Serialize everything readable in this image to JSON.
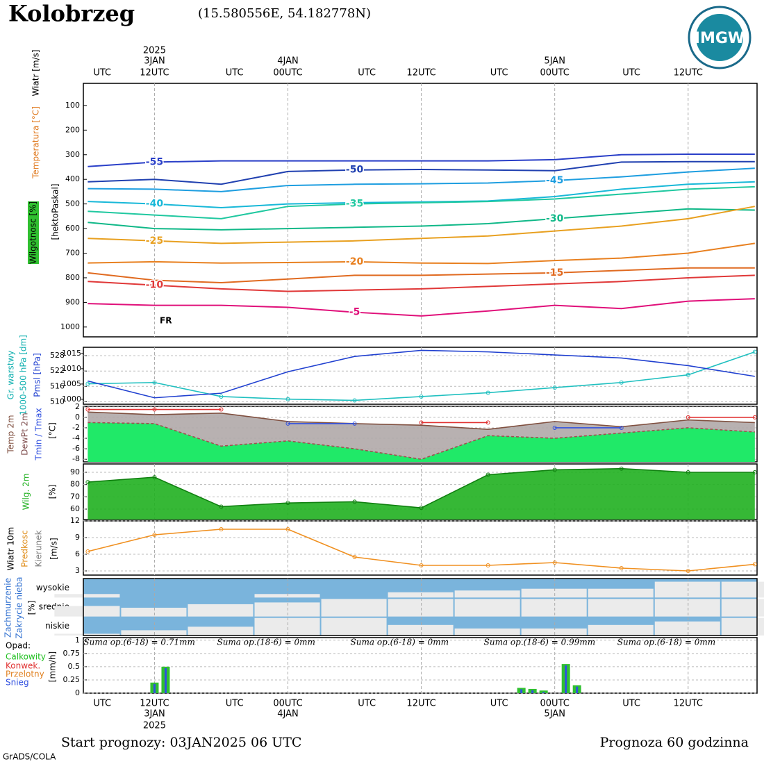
{
  "header": {
    "title": "Kolobrzeg",
    "coords": "(15.580556E, 54.182778N)",
    "logo": "IMGW"
  },
  "time_axis": {
    "xlim": [
      -0.4,
      60.2
    ],
    "ticks": [
      {
        "value": 1.3,
        "label": "UTC"
      },
      {
        "value": 6,
        "label": "12UTC"
      },
      {
        "value": 13.2,
        "label": "UTC"
      },
      {
        "value": 18,
        "label": "00UTC"
      },
      {
        "value": 25.1,
        "label": "UTC"
      },
      {
        "value": 30,
        "label": "12UTC"
      },
      {
        "value": 37,
        "label": "UTC"
      },
      {
        "value": 42,
        "label": "00UTC"
      },
      {
        "value": 48.9,
        "label": "UTC"
      },
      {
        "value": 54,
        "label": "12UTC"
      }
    ],
    "dates": [
      {
        "value": 6,
        "label": "3JAN"
      },
      {
        "value": 18,
        "label": "4JAN"
      },
      {
        "value": 42,
        "label": "5JAN"
      }
    ],
    "year": {
      "value": 6,
      "label": "2025"
    }
  },
  "chart_data": [
    {
      "type": "line",
      "labels": [
        "Wiatr [m/s]",
        "Temperatura [°C]",
        "Wilgotnosc [%]",
        "[hektoPaskal]"
      ],
      "annotations": [
        "FR"
      ],
      "ylim": [
        1040,
        10
      ],
      "yticks": [
        100,
        200,
        300,
        400,
        500,
        600,
        700,
        800,
        900,
        1000
      ],
      "x": [
        0,
        6,
        12,
        18,
        24,
        30,
        36,
        42,
        48,
        54,
        60
      ],
      "series": [
        {
          "name": "-55",
          "color": "#2a3fc8",
          "values": [
            348,
            330,
            325,
            325,
            325,
            325,
            325,
            320,
            300,
            298,
            298
          ]
        },
        {
          "name": "-50",
          "color": "#2040b0",
          "values": [
            410,
            400,
            420,
            368,
            362,
            360,
            362,
            365,
            330,
            328,
            328
          ]
        },
        {
          "name": "-45",
          "color": "#1e9ee0",
          "values": [
            438,
            440,
            450,
            425,
            420,
            418,
            415,
            405,
            390,
            370,
            355
          ]
        },
        {
          "name": "-40",
          "color": "#18b8d8",
          "values": [
            490,
            500,
            515,
            500,
            495,
            492,
            488,
            470,
            440,
            420,
            410
          ]
        },
        {
          "name": "-35",
          "color": "#20c8a0",
          "values": [
            530,
            545,
            560,
            510,
            500,
            495,
            490,
            480,
            460,
            440,
            430
          ]
        },
        {
          "name": "-30",
          "color": "#10b888",
          "values": [
            575,
            600,
            605,
            600,
            595,
            590,
            580,
            560,
            540,
            520,
            525
          ]
        },
        {
          "name": "-25",
          "color": "#e8a020",
          "values": [
            640,
            650,
            660,
            655,
            650,
            640,
            630,
            610,
            590,
            560,
            510
          ]
        },
        {
          "name": "-20",
          "color": "#e88020",
          "values": [
            740,
            735,
            740,
            738,
            735,
            740,
            742,
            730,
            720,
            700,
            660
          ]
        },
        {
          "name": "-15",
          "color": "#e06a20",
          "values": [
            780,
            810,
            820,
            805,
            790,
            790,
            785,
            780,
            770,
            760,
            760
          ]
        },
        {
          "name": "-10",
          "color": "#e03838",
          "values": [
            815,
            830,
            845,
            855,
            850,
            845,
            835,
            825,
            815,
            800,
            790
          ]
        },
        {
          "name": "-5",
          "color": "#e0107a",
          "values": [
            905,
            912,
            912,
            920,
            940,
            955,
            935,
            912,
            925,
            895,
            885
          ]
        }
      ]
    },
    {
      "type": "line",
      "labels": [
        "Gr. warstwy",
        "1000-500 hPa [dm]",
        "Pmsl [hPa]"
      ],
      "ylim": [
        509,
        531.3
      ],
      "yticks": [
        510,
        516,
        522,
        528
      ],
      "y2lim": [
        998.4,
        1017
      ],
      "y2ticks": [
        1000,
        1005,
        1010,
        1015
      ],
      "x": [
        0,
        6,
        12,
        18,
        24,
        30,
        36,
        42,
        48,
        54,
        60
      ],
      "series": [
        {
          "name": "1000-500 hPa",
          "color": "#20c0c0",
          "markers": true,
          "values": [
            517,
            517.5,
            512,
            511,
            510.5,
            512,
            513.5,
            515.5,
            517.5,
            520.5,
            529.5
          ]
        },
        {
          "name": "Pmsl",
          "color": "#2040d0",
          "axis": "y2",
          "values": [
            1006,
            1000.5,
            1002,
            1009,
            1014,
            1016,
            1015.5,
            1014.5,
            1013.5,
            1011,
            1007.5
          ]
        }
      ]
    },
    {
      "type": "line",
      "labels": [
        "Temp 2m",
        "DewPt 2m",
        "Tmin / Tmax",
        "[°C]"
      ],
      "ylim": [
        -8.5,
        2.1
      ],
      "yticks": [
        2,
        0,
        -2,
        -4,
        -6,
        -8
      ],
      "x": [
        0,
        6,
        12,
        18,
        24,
        30,
        36,
        42,
        48,
        54,
        60
      ],
      "series": [
        {
          "name": "Temp 2m",
          "color": "#805040",
          "fill": "#b0a8a8",
          "values": [
            1,
            0.5,
            0.8,
            -0.8,
            -1.2,
            -1.5,
            -2.3,
            -0.8,
            -1.8,
            -0.5,
            -1
          ]
        },
        {
          "name": "DewPt 2m",
          "color": "#a05050",
          "dashed": true,
          "fill": "#10f060",
          "values": [
            -1,
            -1.2,
            -5.5,
            -4.5,
            -6,
            -8,
            -3.5,
            -4,
            -3,
            -2,
            -2.8
          ]
        },
        {
          "name": "Tmax",
          "color": "#e03030",
          "markers": true,
          "values": [
            1.5,
            1.5,
            1.5,
            null,
            null,
            -1,
            -1,
            null,
            null,
            0,
            0
          ]
        },
        {
          "name": "Tmin",
          "color": "#3050e0",
          "markers": true,
          "values": [
            null,
            null,
            null,
            -1.2,
            -1.2,
            null,
            null,
            -2,
            -2,
            null,
            null
          ]
        }
      ]
    },
    {
      "type": "line",
      "labels": [
        "Wilg. 2m",
        "[%]"
      ],
      "ylim": [
        51.5,
        96.8
      ],
      "yticks": [
        90,
        80,
        70,
        60
      ],
      "x": [
        0,
        6,
        12,
        18,
        24,
        30,
        36,
        42,
        48,
        54,
        60
      ],
      "series": [
        {
          "name": "Wilg. 2m",
          "color": "#108010",
          "fill": "#20b020",
          "markers": true,
          "values": [
            82,
            86,
            62,
            65,
            66,
            61,
            88,
            92,
            93,
            90,
            90
          ]
        }
      ]
    },
    {
      "type": "line",
      "labels": [
        "Wiatr 10m",
        "Predkosc",
        "Kierunek",
        "[m/s]"
      ],
      "ylim": [
        2.25,
        12
      ],
      "yticks": [
        12,
        9,
        6,
        3
      ],
      "x": [
        0,
        6,
        12,
        18,
        24,
        30,
        36,
        42,
        48,
        54,
        60
      ],
      "series": [
        {
          "name": "Predkosc",
          "color": "#f09020",
          "markers": true,
          "values": [
            6.5,
            9.5,
            10.5,
            10.5,
            5.5,
            4,
            4,
            4.5,
            3.5,
            3,
            4.2
          ]
        }
      ]
    },
    {
      "type": "cloud",
      "labels": [
        "Zachmurzenie",
        "Zakrycie nieba",
        "[%]"
      ],
      "x": [
        0,
        6,
        12,
        18,
        24,
        30,
        36,
        42,
        48,
        54,
        60
      ],
      "series": [
        {
          "name": "wysokie",
          "values": [
            20,
            0,
            0,
            20,
            0,
            30,
            40,
            50,
            50,
            90,
            90
          ]
        },
        {
          "name": "srednie",
          "values": [
            60,
            50,
            70,
            80,
            100,
            100,
            100,
            100,
            100,
            100,
            100
          ]
        },
        {
          "name": "niskie",
          "values": [
            10,
            30,
            50,
            100,
            100,
            60,
            40,
            40,
            60,
            80,
            100
          ]
        }
      ]
    },
    {
      "type": "bar",
      "labels": [
        "Opad:",
        "Calkowity",
        "Konwek.",
        "Przelotny",
        "Snieg",
        "[mm/h]"
      ],
      "annotations": [
        "Suma op.(6-18) = 0.71mm",
        "Suma op.(18-6) = 0mm",
        "Suma op.(6-18) = 0mm",
        "Suma op.(18-6) = 0.99mm",
        "Suma op.(6-18) = 0mm"
      ],
      "ylim": [
        0,
        1.05
      ],
      "yticks": [
        1,
        0.75,
        0.5,
        0.25,
        0
      ],
      "color": "#30c030",
      "x": [
        6,
        7,
        39,
        40,
        41,
        43,
        44
      ],
      "values": [
        0.2,
        0.5,
        0.1,
        0.08,
        0.05,
        0.55,
        0.15
      ]
    }
  ],
  "footer": {
    "start": "Start prognozy: 03JAN2025 06 UTC",
    "range": "Prognoza 60 godzinna",
    "credit": "GrADS/COLA"
  }
}
